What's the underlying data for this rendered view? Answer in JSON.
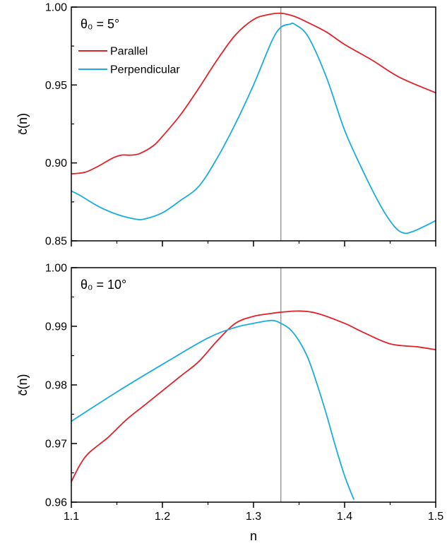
{
  "colors": {
    "parallel": "#e0222a",
    "perpendicular": "#1aace0",
    "reference_line": "#9a9a9a",
    "axis": "#000000"
  },
  "chart_data": [
    {
      "type": "line",
      "annotation": "θ₀ = 5°",
      "xlabel": "",
      "ylabel": "c̄(n)",
      "xlim": [
        1.1,
        1.5
      ],
      "ylim": [
        0.85,
        1.0
      ],
      "xticks": [
        1.1,
        1.2,
        1.3,
        1.4,
        1.5
      ],
      "xtick_labels": [
        "",
        "",
        "",
        "",
        ""
      ],
      "yticks": [
        0.85,
        0.9,
        0.95,
        1.0
      ],
      "ytick_labels": [
        "0.85",
        "0.90",
        "0.95",
        "1.00"
      ],
      "vline_x": 1.33,
      "grid": false,
      "legend": "upper-left",
      "series": [
        {
          "name": "Parallel",
          "color_key": "parallel",
          "x": [
            1.1,
            1.115,
            1.13,
            1.145,
            1.155,
            1.165,
            1.175,
            1.19,
            1.2,
            1.22,
            1.24,
            1.26,
            1.28,
            1.3,
            1.315,
            1.33,
            1.345,
            1.36,
            1.38,
            1.4,
            1.43,
            1.46,
            1.5
          ],
          "values": [
            0.893,
            0.894,
            0.898,
            0.903,
            0.905,
            0.905,
            0.906,
            0.911,
            0.917,
            0.931,
            0.948,
            0.966,
            0.982,
            0.992,
            0.995,
            0.996,
            0.994,
            0.99,
            0.984,
            0.976,
            0.966,
            0.955,
            0.945
          ]
        },
        {
          "name": "Perpendicular",
          "color_key": "perpendicular",
          "x": [
            1.1,
            1.11,
            1.13,
            1.15,
            1.17,
            1.18,
            1.2,
            1.22,
            1.24,
            1.26,
            1.28,
            1.3,
            1.32,
            1.33,
            1.34,
            1.345,
            1.36,
            1.38,
            1.4,
            1.42,
            1.44,
            1.455,
            1.465,
            1.475,
            1.49,
            1.5
          ],
          "values": [
            0.882,
            0.879,
            0.872,
            0.867,
            0.864,
            0.864,
            0.868,
            0.876,
            0.885,
            0.903,
            0.925,
            0.95,
            0.978,
            0.987,
            0.989,
            0.989,
            0.981,
            0.955,
            0.921,
            0.895,
            0.872,
            0.859,
            0.855,
            0.856,
            0.86,
            0.863
          ]
        }
      ]
    },
    {
      "type": "line",
      "annotation": "θ₀ = 10°",
      "xlabel": "n",
      "ylabel": "c̄(n)",
      "xlim": [
        1.1,
        1.5
      ],
      "ylim": [
        0.96,
        1.0
      ],
      "xticks": [
        1.1,
        1.2,
        1.3,
        1.4,
        1.5
      ],
      "xtick_labels": [
        "1.1",
        "1.2",
        "1.3",
        "1.4",
        "1.5"
      ],
      "yticks": [
        0.96,
        0.97,
        0.98,
        0.99,
        1.0
      ],
      "ytick_labels": [
        "0.96",
        "0.97",
        "0.98",
        "0.99",
        "1.00"
      ],
      "vline_x": 1.33,
      "grid": false,
      "series": [
        {
          "name": "Parallel",
          "color_key": "parallel",
          "x": [
            1.1,
            1.11,
            1.12,
            1.14,
            1.16,
            1.18,
            1.2,
            1.22,
            1.24,
            1.26,
            1.28,
            1.3,
            1.32,
            1.33,
            1.35,
            1.37,
            1.4,
            1.42,
            1.45,
            1.48,
            1.5
          ],
          "values": [
            0.9635,
            0.9665,
            0.9685,
            0.971,
            0.974,
            0.9765,
            0.979,
            0.9815,
            0.984,
            0.9875,
            0.9905,
            0.9917,
            0.9922,
            0.9924,
            0.9926,
            0.9922,
            0.9905,
            0.989,
            0.987,
            0.9865,
            0.986
          ]
        },
        {
          "name": "Perpendicular",
          "color_key": "perpendicular",
          "x": [
            1.1,
            1.15,
            1.2,
            1.25,
            1.28,
            1.3,
            1.32,
            1.33,
            1.34,
            1.35,
            1.36,
            1.37,
            1.38,
            1.39,
            1.4,
            1.41
          ],
          "values": [
            0.9738,
            0.9788,
            0.9835,
            0.988,
            0.9898,
            0.9905,
            0.991,
            0.9905,
            0.9895,
            0.9875,
            0.9845,
            0.98,
            0.975,
            0.9695,
            0.9645,
            0.9605
          ]
        }
      ]
    }
  ]
}
